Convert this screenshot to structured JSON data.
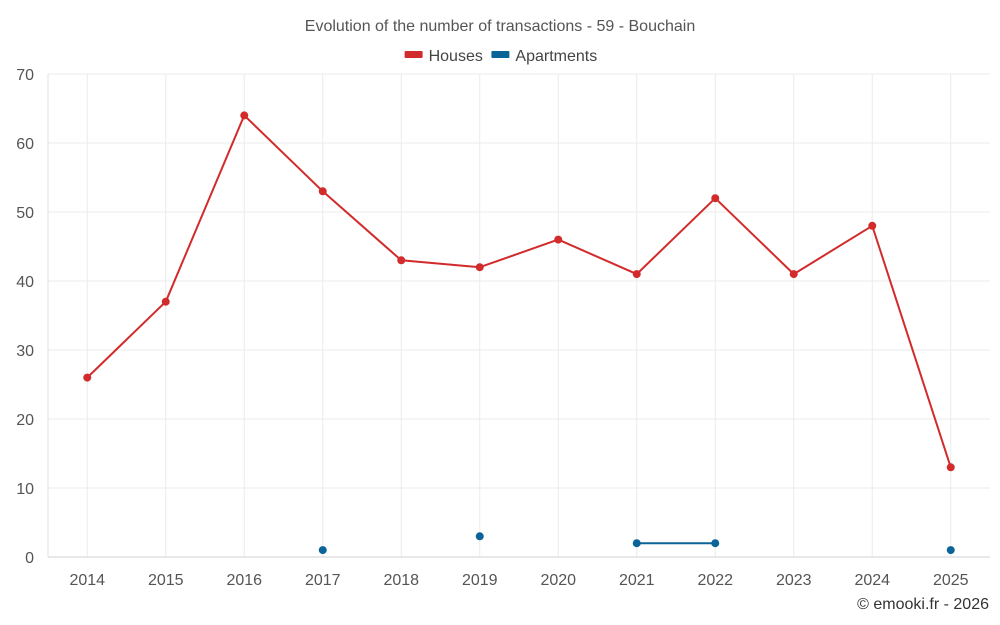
{
  "chart_data": {
    "type": "line",
    "title": "Evolution of the number of transactions - 59 - Bouchain",
    "categories": [
      "2014",
      "2015",
      "2016",
      "2017",
      "2018",
      "2019",
      "2020",
      "2021",
      "2022",
      "2023",
      "2024",
      "2025"
    ],
    "series": [
      {
        "name": "Houses",
        "color": "#d22b2b",
        "values": [
          26,
          37,
          64,
          53,
          43,
          42,
          46,
          41,
          52,
          41,
          48,
          13
        ]
      },
      {
        "name": "Apartments",
        "color": "#0b6497",
        "values": [
          null,
          null,
          null,
          1,
          null,
          3,
          null,
          2,
          2,
          null,
          null,
          1
        ]
      }
    ],
    "ylim": [
      0,
      70
    ],
    "yticks": [
      0,
      10,
      20,
      30,
      40,
      50,
      60,
      70
    ],
    "xlabel": "",
    "ylabel": "",
    "grid": true,
    "legend_position": "top-center"
  },
  "credit": "© emooki.fr - 2026"
}
